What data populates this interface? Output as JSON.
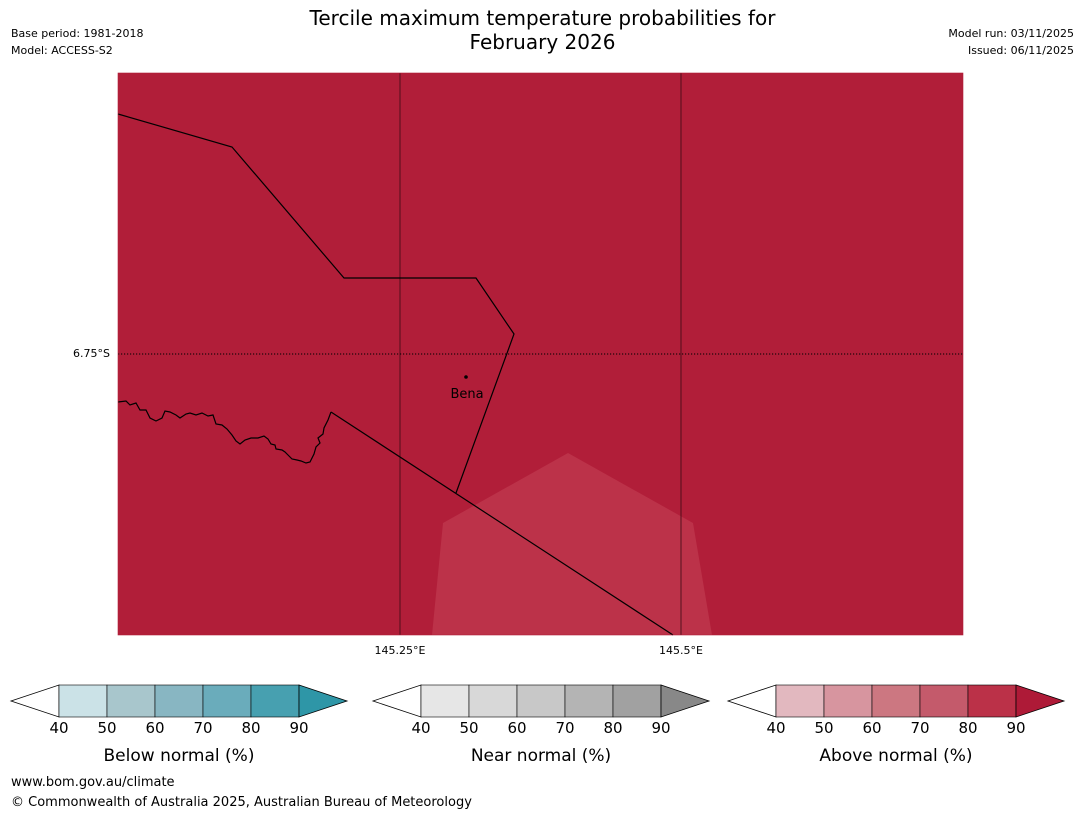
{
  "title": {
    "line1": "Tercile maximum temperature probabilities for",
    "line2": "February 2026"
  },
  "meta_left": {
    "base_period": "Base period: 1981-2018",
    "model": "Model: ACCESS-S2"
  },
  "meta_right": {
    "model_run": "Model run: 03/11/2025",
    "issued": "Issued: 06/11/2025"
  },
  "map": {
    "background_color": "#b11e39",
    "overlay_color": "#bc3249",
    "latitude_label": "6.75°S",
    "longitude_labels": [
      "145.25°E",
      "145.5°E"
    ],
    "place_label": "Bena"
  },
  "legends": [
    {
      "title": "Below normal (%)",
      "ticks": [
        "40",
        "50",
        "60",
        "70",
        "80",
        "90"
      ],
      "colors": [
        "#ffffff",
        "#cbe2e7",
        "#a8c6cc",
        "#88b6c2",
        "#6aacbb",
        "#47a0b0",
        "#2e96a7"
      ]
    },
    {
      "title": "Near normal (%)",
      "ticks": [
        "40",
        "50",
        "60",
        "70",
        "80",
        "90"
      ],
      "colors": [
        "#ffffff",
        "#e6e6e6",
        "#d8d8d8",
        "#c8c8c8",
        "#b4b4b4",
        "#a1a1a1",
        "#888888"
      ]
    },
    {
      "title": "Above normal (%)",
      "ticks": [
        "40",
        "50",
        "60",
        "70",
        "80",
        "90"
      ],
      "colors": [
        "#ffffff",
        "#e2b8bf",
        "#d7959f",
        "#cc7781",
        "#c45a6b",
        "#bb3148",
        "#ae1a37"
      ]
    }
  ],
  "footer": {
    "url": "www.bom.gov.au/climate",
    "copyright": "© Commonwealth of Australia 2025, Australian Bureau of Meteorology"
  }
}
